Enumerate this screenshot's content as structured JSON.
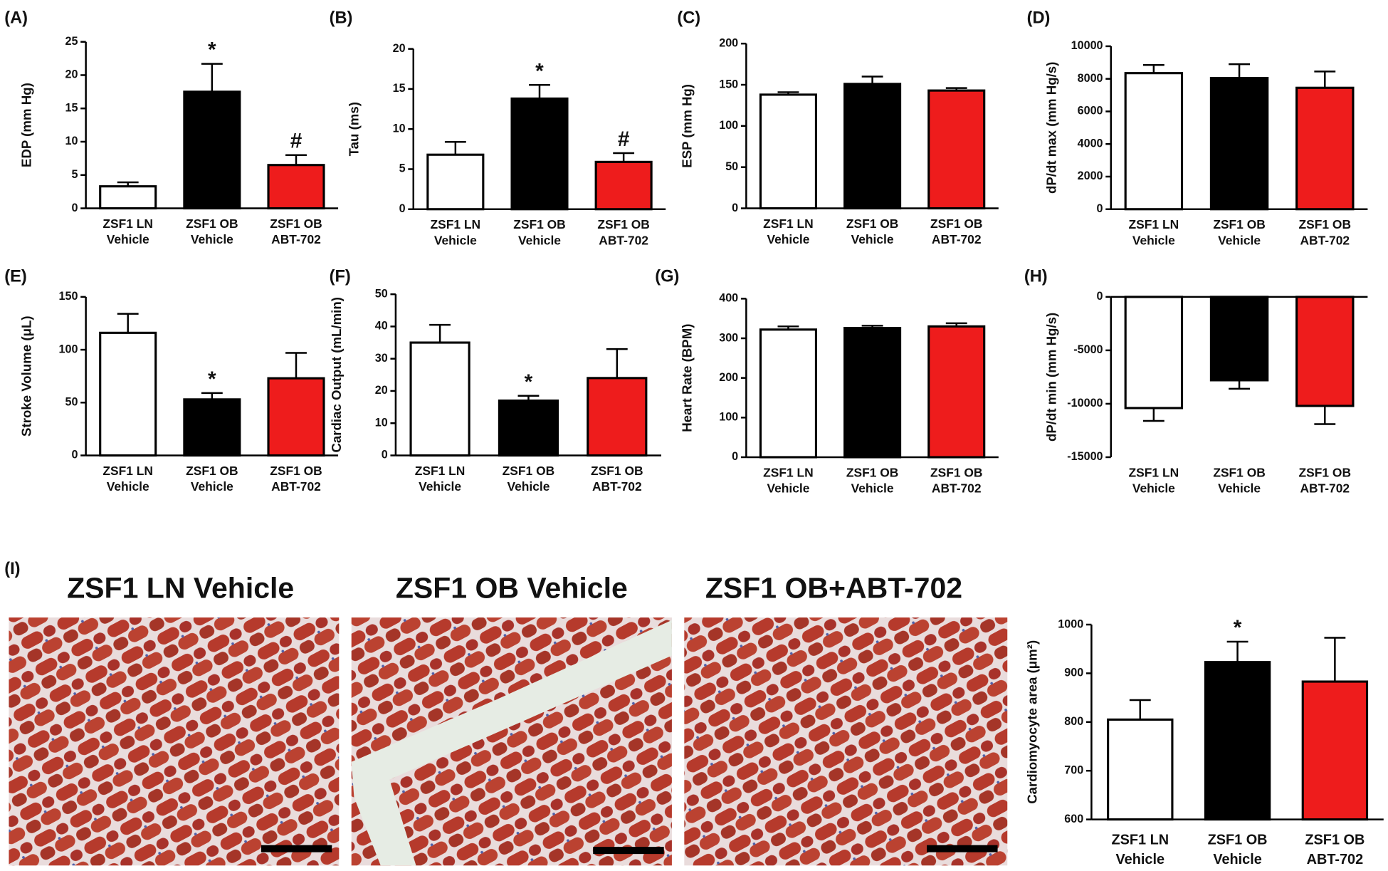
{
  "micrographs": {
    "panel": "(I)",
    "titles": [
      "ZSF1 LN Vehicle",
      "ZSF1 OB Vehicle",
      "ZSF1 OB+ABT-702"
    ]
  },
  "chart_data": [
    {
      "type": "bar",
      "panel": "(A)",
      "ylabel": "EDP (mm Hg)",
      "categories": [
        [
          "ZSF1 LN",
          "Vehicle"
        ],
        [
          "ZSF1 OB",
          "Vehicle"
        ],
        [
          "ZSF1 OB",
          "ABT-702"
        ]
      ],
      "values": [
        3.3,
        17.5,
        6.5
      ],
      "errors": [
        0.6,
        4.2,
        1.5
      ],
      "annotations": [
        null,
        "*",
        "#"
      ],
      "colors": [
        "#ffffff",
        "#000000",
        "#ee1c1c"
      ],
      "ylim": [
        0,
        25
      ],
      "yticks": [
        0,
        5,
        10,
        15,
        20,
        25
      ]
    },
    {
      "type": "bar",
      "panel": "(B)",
      "ylabel": "Tau (ms)",
      "categories": [
        [
          "ZSF1 LN",
          "Vehicle"
        ],
        [
          "ZSF1 OB",
          "Vehicle"
        ],
        [
          "ZSF1 OB",
          "ABT-702"
        ]
      ],
      "values": [
        6.8,
        13.8,
        5.9
      ],
      "errors": [
        1.6,
        1.7,
        1.1
      ],
      "annotations": [
        null,
        "*",
        "#"
      ],
      "colors": [
        "#ffffff",
        "#000000",
        "#ee1c1c"
      ],
      "ylim": [
        0,
        20
      ],
      "yticks": [
        0,
        5,
        10,
        15,
        20
      ]
    },
    {
      "type": "bar",
      "panel": "(C)",
      "ylabel": "ESP (mm Hg)",
      "categories": [
        [
          "ZSF1 LN",
          "Vehicle"
        ],
        [
          "ZSF1 OB",
          "Vehicle"
        ],
        [
          "ZSF1 OB",
          "ABT-702"
        ]
      ],
      "values": [
        138,
        151,
        143
      ],
      "errors": [
        3,
        9,
        3
      ],
      "colors": [
        "#ffffff",
        "#000000",
        "#ee1c1c"
      ],
      "ylim": [
        0,
        200
      ],
      "yticks": [
        0,
        50,
        100,
        150,
        200
      ]
    },
    {
      "type": "bar",
      "panel": "(D)",
      "ylabel": "dP/dt max (mm Hg/s)",
      "categories": [
        [
          "ZSF1 LN",
          "Vehicle"
        ],
        [
          "ZSF1 OB",
          "Vehicle"
        ],
        [
          "ZSF1 OB",
          "ABT-702"
        ]
      ],
      "values": [
        8350,
        8050,
        7450
      ],
      "errors": [
        500,
        850,
        1000
      ],
      "colors": [
        "#ffffff",
        "#000000",
        "#ee1c1c"
      ],
      "ylim": [
        0,
        10000
      ],
      "yticks": [
        0,
        2000,
        4000,
        6000,
        8000,
        10000
      ]
    },
    {
      "type": "bar",
      "panel": "(E)",
      "ylabel": "Stroke Volume (μL)",
      "categories": [
        [
          "ZSF1 LN",
          "Vehicle"
        ],
        [
          "ZSF1 OB",
          "Vehicle"
        ],
        [
          "ZSF1 OB",
          "ABT-702"
        ]
      ],
      "values": [
        116,
        53,
        73
      ],
      "errors": [
        18,
        6,
        24
      ],
      "annotations": [
        null,
        "*",
        null
      ],
      "colors": [
        "#ffffff",
        "#000000",
        "#ee1c1c"
      ],
      "ylim": [
        0,
        150
      ],
      "yticks": [
        0,
        50,
        100,
        150
      ]
    },
    {
      "type": "bar",
      "panel": "(F)",
      "ylabel": "Cardiac Output (mL/min)",
      "categories": [
        [
          "ZSF1 LN",
          "Vehicle"
        ],
        [
          "ZSF1 OB",
          "Vehicle"
        ],
        [
          "ZSF1 OB",
          "ABT-702"
        ]
      ],
      "values": [
        35,
        17,
        24
      ],
      "errors": [
        5.5,
        1.5,
        9
      ],
      "annotations": [
        null,
        "*",
        null
      ],
      "colors": [
        "#ffffff",
        "#000000",
        "#ee1c1c"
      ],
      "ylim": [
        0,
        50
      ],
      "yticks": [
        0,
        10,
        20,
        30,
        40,
        50
      ]
    },
    {
      "type": "bar",
      "panel": "(G)",
      "ylabel": "Heart Rate (BPM)",
      "categories": [
        [
          "ZSF1 LN",
          "Vehicle"
        ],
        [
          "ZSF1 OB",
          "Vehicle"
        ],
        [
          "ZSF1 OB",
          "ABT-702"
        ]
      ],
      "values": [
        322,
        326,
        330
      ],
      "errors": [
        8,
        6,
        8
      ],
      "colors": [
        "#ffffff",
        "#000000",
        "#ee1c1c"
      ],
      "ylim": [
        0,
        400
      ],
      "yticks": [
        0,
        100,
        200,
        300,
        400
      ]
    },
    {
      "type": "bar",
      "panel": "(H)",
      "ylabel": "dP/dt min (mm Hg/s)",
      "categories": [
        [
          "ZSF1 LN",
          "Vehicle"
        ],
        [
          "ZSF1 OB",
          "Vehicle"
        ],
        [
          "ZSF1 OB",
          "ABT-702"
        ]
      ],
      "values": [
        -10400,
        -7800,
        -10200
      ],
      "errors": [
        1200,
        800,
        1700
      ],
      "colors": [
        "#ffffff",
        "#000000",
        "#ee1c1c"
      ],
      "ylim": [
        -15000,
        0
      ],
      "yticks": [
        -15000,
        -10000,
        -5000,
        0
      ]
    },
    {
      "type": "bar",
      "ylabel": "Cardiomyocyte area (μm²)",
      "categories": [
        [
          "ZSF1 LN",
          "Vehicle"
        ],
        [
          "ZSF1 OB",
          "Vehicle"
        ],
        [
          "ZSF1 OB",
          "ABT-702"
        ]
      ],
      "values": [
        805,
        923,
        883
      ],
      "errors": [
        40,
        42,
        90
      ],
      "annotations": [
        null,
        "*",
        null
      ],
      "colors": [
        "#ffffff",
        "#000000",
        "#ee1c1c"
      ],
      "ylim": [
        600,
        1000
      ],
      "yticks": [
        600,
        700,
        800,
        900,
        1000
      ]
    }
  ]
}
